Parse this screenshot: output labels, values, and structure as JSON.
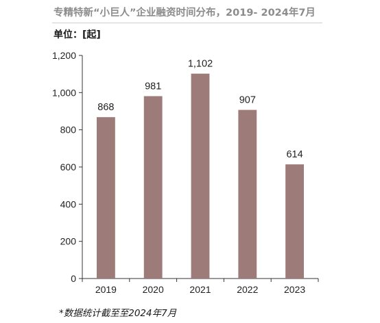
{
  "header": {
    "title": "专精特新“小巨人”企业融资时间分布，2019- 2024年7月",
    "unit": "单位：[起]"
  },
  "footer": {
    "note": "*数据统计截至至2024年7月"
  },
  "colors": {
    "bar": "#9c7b78",
    "axis": "#333333",
    "title": "#8c8c8c"
  },
  "chart_data": {
    "type": "bar",
    "title": "专精特新“小巨人”企业融资时间分布，2019- 2024年7月",
    "ylabel": "单位：[起]",
    "xlabel": "",
    "categories": [
      "2019",
      "2020",
      "2021",
      "2022",
      "2023"
    ],
    "values": [
      868,
      981,
      1102,
      907,
      614
    ],
    "value_labels": [
      "868",
      "981",
      "1,102",
      "907",
      "614"
    ],
    "ylim": [
      0,
      1200
    ],
    "yticks": [
      0,
      200,
      400,
      600,
      800,
      1000,
      1200
    ],
    "ytick_labels": [
      "0",
      "200",
      "400",
      "600",
      "800",
      "1,000",
      "1,200"
    ],
    "grid": false,
    "legend": "none"
  }
}
